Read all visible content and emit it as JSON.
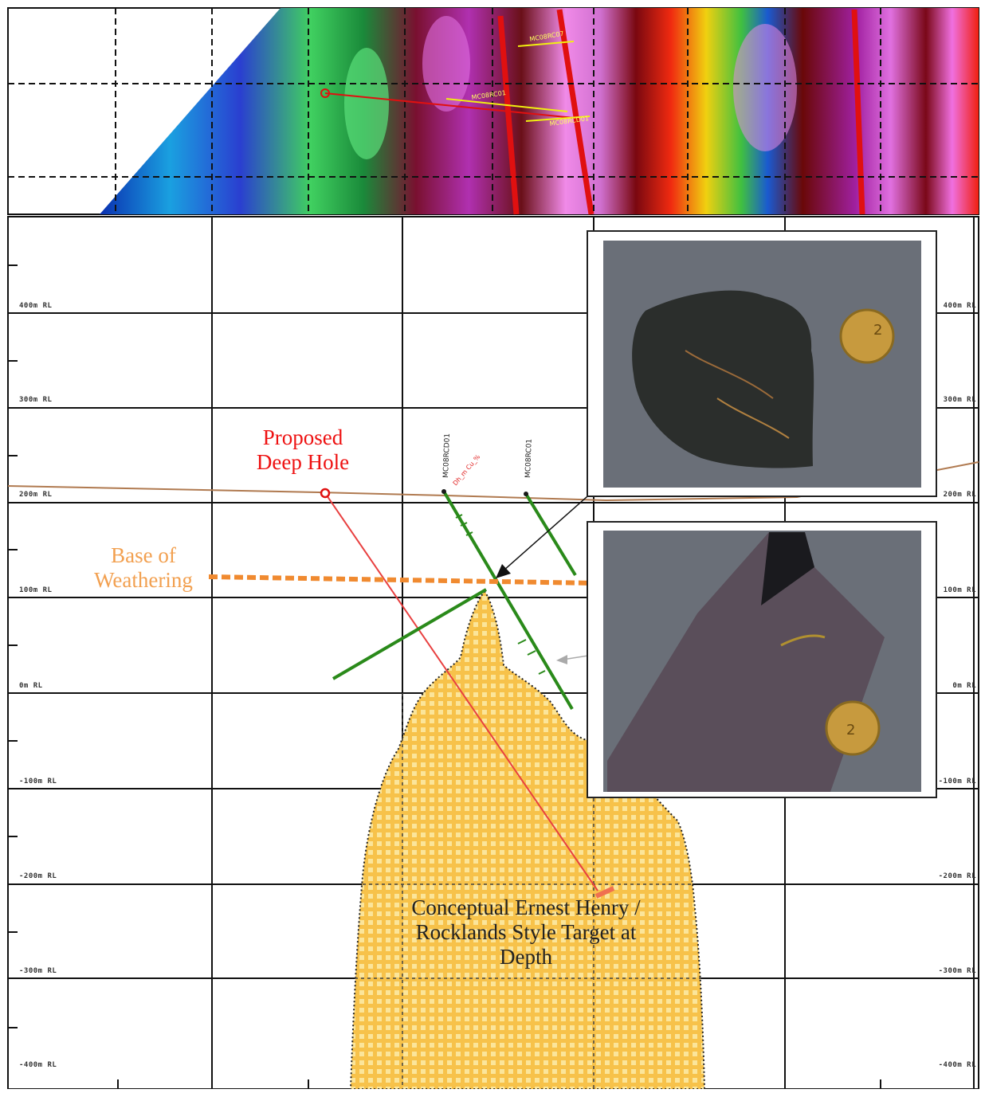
{
  "labels": {
    "proposed_hole": [
      "Proposed",
      "Deep Hole"
    ],
    "base_weathering": [
      "Base of",
      "Weathering"
    ],
    "target": [
      "Conceptual Ernest Henry /",
      "Rocklands Style Target at",
      "Depth"
    ]
  },
  "elevation_labels_left": [
    "400m RL",
    "300m RL",
    "200m RL",
    "100m RL",
    "0m RL",
    "-100m RL",
    "-200m RL",
    "-300m RL",
    "-400m RL"
  ],
  "elevation_labels_right": [
    "400m RL",
    "300m RL",
    "200m RL",
    "100m RL",
    "0m RL",
    "-100m RL",
    "-200m RL",
    "-300m RL",
    "-400m RL"
  ],
  "hole_labels": [
    "MC08RCD01",
    "MC08RC01",
    "MC08RC07",
    "MC08RC01",
    "MC08RCD01"
  ],
  "colors": {
    "proposed_hole": "#ee1111",
    "drill_hole": "#2a8a1a",
    "weathering": "#f08a30",
    "target_fill": "#f6b82a",
    "surface": "#b07a50"
  },
  "icons": [
    "coin-icon",
    "rock-sample-photo"
  ]
}
